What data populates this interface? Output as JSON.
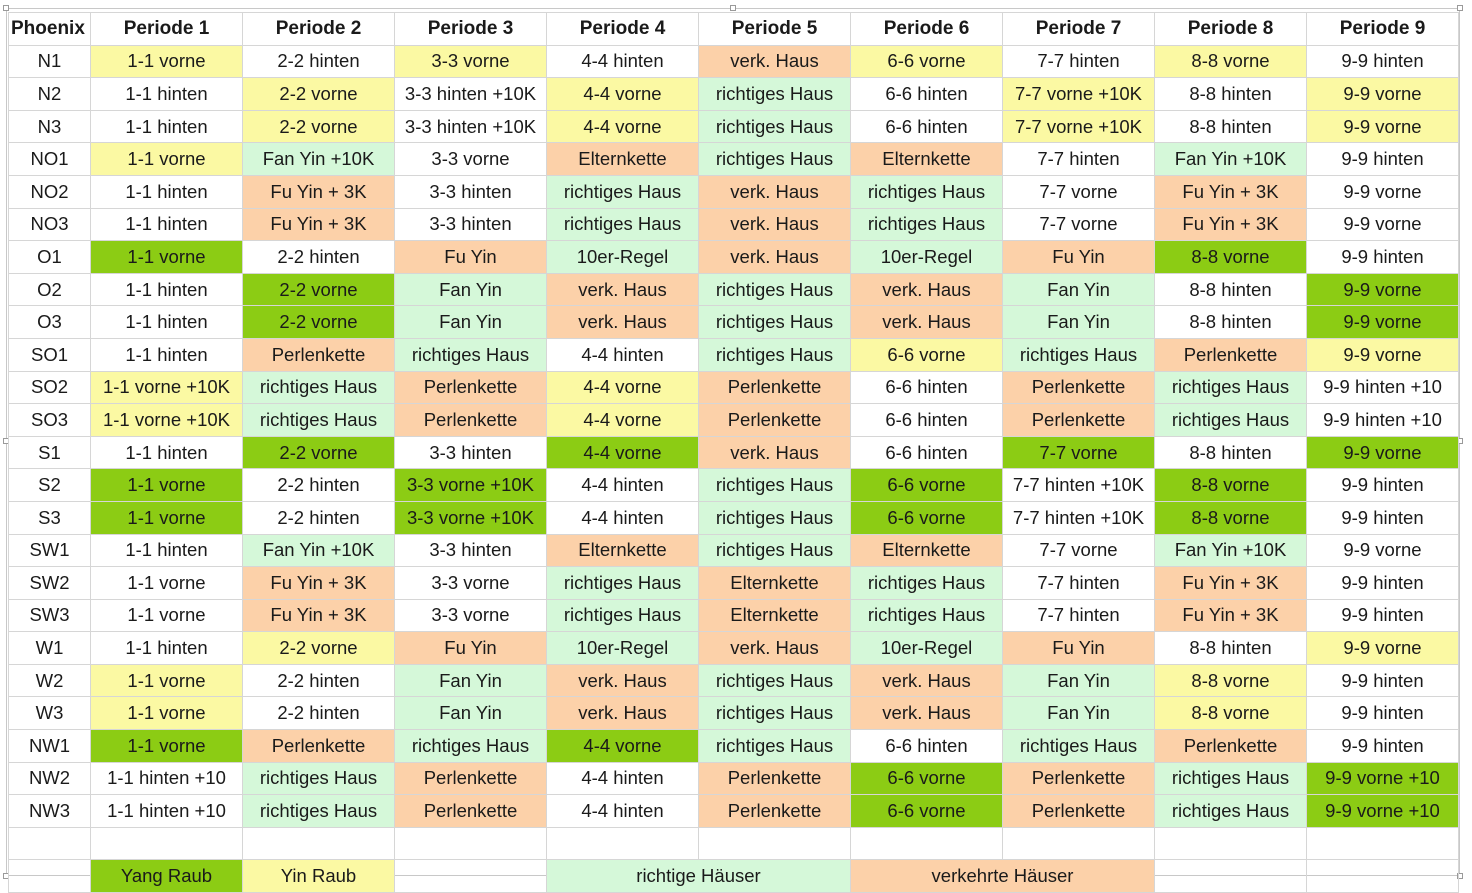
{
  "header": {
    "corner": "Phoenix",
    "periods": [
      "Periode 1",
      "Periode 2",
      "Periode 3",
      "Periode 4",
      "Periode 5",
      "Periode 6",
      "Periode 7",
      "Periode 8",
      "Periode 9"
    ]
  },
  "colors": {
    "yang": "#8ccc14",
    "yin": "#fbf9a3",
    "right": "#d5f8d9",
    "wrong": "#fcd1a9",
    "none": "#ffffff"
  },
  "rows": [
    {
      "label": "N1",
      "cells": [
        [
          "1-1 vorne",
          "yin"
        ],
        [
          "2-2 hinten",
          "none"
        ],
        [
          "3-3 vorne",
          "yin"
        ],
        [
          "4-4 hinten",
          "none"
        ],
        [
          "verk. Haus",
          "wrong"
        ],
        [
          "6-6 vorne",
          "yin"
        ],
        [
          "7-7 hinten",
          "none"
        ],
        [
          "8-8 vorne",
          "yin"
        ],
        [
          "9-9 hinten",
          "none"
        ]
      ]
    },
    {
      "label": "N2",
      "cells": [
        [
          "1-1 hinten",
          "none"
        ],
        [
          "2-2 vorne",
          "yin"
        ],
        [
          "3-3 hinten +10K",
          "none"
        ],
        [
          "4-4 vorne",
          "yin"
        ],
        [
          "richtiges Haus",
          "right"
        ],
        [
          "6-6 hinten",
          "none"
        ],
        [
          "7-7 vorne +10K",
          "yin"
        ],
        [
          "8-8 hinten",
          "none"
        ],
        [
          "9-9 vorne",
          "yin"
        ]
      ]
    },
    {
      "label": "N3",
      "cells": [
        [
          "1-1 hinten",
          "none"
        ],
        [
          "2-2 vorne",
          "yin"
        ],
        [
          "3-3 hinten +10K",
          "none"
        ],
        [
          "4-4 vorne",
          "yin"
        ],
        [
          "richtiges Haus",
          "right"
        ],
        [
          "6-6 hinten",
          "none"
        ],
        [
          "7-7 vorne +10K",
          "yin"
        ],
        [
          "8-8 hinten",
          "none"
        ],
        [
          "9-9 vorne",
          "yin"
        ]
      ]
    },
    {
      "label": "NO1",
      "cells": [
        [
          "1-1 vorne",
          "yin"
        ],
        [
          "Fan Yin +10K",
          "right"
        ],
        [
          "3-3 vorne",
          "none"
        ],
        [
          "Elternkette",
          "wrong"
        ],
        [
          "richtiges Haus",
          "right"
        ],
        [
          "Elternkette",
          "wrong"
        ],
        [
          "7-7 hinten",
          "none"
        ],
        [
          "Fan Yin +10K",
          "right"
        ],
        [
          "9-9 hinten",
          "none"
        ]
      ]
    },
    {
      "label": "NO2",
      "cells": [
        [
          "1-1 hinten",
          "none"
        ],
        [
          "Fu Yin + 3K",
          "wrong"
        ],
        [
          "3-3 hinten",
          "none"
        ],
        [
          "richtiges Haus",
          "right"
        ],
        [
          "verk. Haus",
          "wrong"
        ],
        [
          "richtiges Haus",
          "right"
        ],
        [
          "7-7 vorne",
          "none"
        ],
        [
          "Fu Yin + 3K",
          "wrong"
        ],
        [
          "9-9 vorne",
          "none"
        ]
      ]
    },
    {
      "label": "NO3",
      "cells": [
        [
          "1-1 hinten",
          "none"
        ],
        [
          "Fu Yin + 3K",
          "wrong"
        ],
        [
          "3-3 hinten",
          "none"
        ],
        [
          "richtiges Haus",
          "right"
        ],
        [
          "verk. Haus",
          "wrong"
        ],
        [
          "richtiges Haus",
          "right"
        ],
        [
          "7-7 vorne",
          "none"
        ],
        [
          "Fu Yin + 3K",
          "wrong"
        ],
        [
          "9-9 vorne",
          "none"
        ]
      ]
    },
    {
      "label": "O1",
      "cells": [
        [
          "1-1 vorne",
          "yang"
        ],
        [
          "2-2 hinten",
          "none"
        ],
        [
          "Fu Yin",
          "wrong"
        ],
        [
          "10er-Regel",
          "right"
        ],
        [
          "verk. Haus",
          "wrong"
        ],
        [
          "10er-Regel",
          "right"
        ],
        [
          "Fu Yin",
          "wrong"
        ],
        [
          "8-8 vorne",
          "yang"
        ],
        [
          "9-9 hinten",
          "none"
        ]
      ]
    },
    {
      "label": "O2",
      "cells": [
        [
          "1-1 hinten",
          "none"
        ],
        [
          "2-2 vorne",
          "yang"
        ],
        [
          "Fan Yin",
          "right"
        ],
        [
          "verk. Haus",
          "wrong"
        ],
        [
          "richtiges Haus",
          "right"
        ],
        [
          "verk. Haus",
          "wrong"
        ],
        [
          "Fan Yin",
          "right"
        ],
        [
          "8-8 hinten",
          "none"
        ],
        [
          "9-9 vorne",
          "yang"
        ]
      ]
    },
    {
      "label": "O3",
      "cells": [
        [
          "1-1 hinten",
          "none"
        ],
        [
          "2-2 vorne",
          "yang"
        ],
        [
          "Fan Yin",
          "right"
        ],
        [
          "verk. Haus",
          "wrong"
        ],
        [
          "richtiges Haus",
          "right"
        ],
        [
          "verk. Haus",
          "wrong"
        ],
        [
          "Fan Yin",
          "right"
        ],
        [
          "8-8 hinten",
          "none"
        ],
        [
          "9-9 vorne",
          "yang"
        ]
      ]
    },
    {
      "label": "SO1",
      "cells": [
        [
          "1-1 hinten",
          "none"
        ],
        [
          "Perlenkette",
          "wrong"
        ],
        [
          "richtiges Haus",
          "right"
        ],
        [
          "4-4 hinten",
          "none"
        ],
        [
          "richtiges Haus",
          "right"
        ],
        [
          "6-6 vorne",
          "yin"
        ],
        [
          "richtiges Haus",
          "right"
        ],
        [
          "Perlenkette",
          "wrong"
        ],
        [
          "9-9 vorne",
          "yin"
        ]
      ]
    },
    {
      "label": "SO2",
      "cells": [
        [
          "1-1 vorne +10K",
          "yin"
        ],
        [
          "richtiges Haus",
          "right"
        ],
        [
          "Perlenkette",
          "wrong"
        ],
        [
          "4-4 vorne",
          "yin"
        ],
        [
          "Perlenkette",
          "wrong"
        ],
        [
          "6-6 hinten",
          "none"
        ],
        [
          "Perlenkette",
          "wrong"
        ],
        [
          "richtiges Haus",
          "right"
        ],
        [
          "9-9 hinten +10",
          "none"
        ]
      ]
    },
    {
      "label": "SO3",
      "cells": [
        [
          "1-1 vorne +10K",
          "yin"
        ],
        [
          "richtiges Haus",
          "right"
        ],
        [
          "Perlenkette",
          "wrong"
        ],
        [
          "4-4 vorne",
          "yin"
        ],
        [
          "Perlenkette",
          "wrong"
        ],
        [
          "6-6 hinten",
          "none"
        ],
        [
          "Perlenkette",
          "wrong"
        ],
        [
          "richtiges Haus",
          "right"
        ],
        [
          "9-9 hinten +10",
          "none"
        ]
      ]
    },
    {
      "label": "S1",
      "cells": [
        [
          "1-1 hinten",
          "none"
        ],
        [
          "2-2 vorne",
          "yang"
        ],
        [
          "3-3 hinten",
          "none"
        ],
        [
          "4-4 vorne",
          "yang"
        ],
        [
          "verk. Haus",
          "wrong"
        ],
        [
          "6-6 hinten",
          "none"
        ],
        [
          "7-7 vorne",
          "yang"
        ],
        [
          "8-8 hinten",
          "none"
        ],
        [
          "9-9 vorne",
          "yang"
        ]
      ]
    },
    {
      "label": "S2",
      "cells": [
        [
          "1-1 vorne",
          "yang"
        ],
        [
          "2-2 hinten",
          "none"
        ],
        [
          "3-3 vorne +10K",
          "yang"
        ],
        [
          "4-4 hinten",
          "none"
        ],
        [
          "richtiges Haus",
          "right"
        ],
        [
          "6-6 vorne",
          "yang"
        ],
        [
          "7-7 hinten +10K",
          "none"
        ],
        [
          "8-8 vorne",
          "yang"
        ],
        [
          "9-9 hinten",
          "none"
        ]
      ]
    },
    {
      "label": "S3",
      "cells": [
        [
          "1-1 vorne",
          "yang"
        ],
        [
          "2-2 hinten",
          "none"
        ],
        [
          "3-3 vorne +10K",
          "yang"
        ],
        [
          "4-4 hinten",
          "none"
        ],
        [
          "richtiges Haus",
          "right"
        ],
        [
          "6-6 vorne",
          "yang"
        ],
        [
          "7-7 hinten +10K",
          "none"
        ],
        [
          "8-8 vorne",
          "yang"
        ],
        [
          "9-9 hinten",
          "none"
        ]
      ]
    },
    {
      "label": "SW1",
      "cells": [
        [
          "1-1 hinten",
          "none"
        ],
        [
          "Fan Yin +10K",
          "right"
        ],
        [
          "3-3 hinten",
          "none"
        ],
        [
          "Elternkette",
          "wrong"
        ],
        [
          "richtiges Haus",
          "right"
        ],
        [
          "Elternkette",
          "wrong"
        ],
        [
          "7-7 vorne",
          "none"
        ],
        [
          "Fan Yin +10K",
          "right"
        ],
        [
          "9-9 vorne",
          "none"
        ]
      ]
    },
    {
      "label": "SW2",
      "cells": [
        [
          "1-1 vorne",
          "none"
        ],
        [
          "Fu Yin + 3K",
          "wrong"
        ],
        [
          "3-3 vorne",
          "none"
        ],
        [
          "richtiges Haus",
          "right"
        ],
        [
          "Elternkette",
          "wrong"
        ],
        [
          "richtiges Haus",
          "right"
        ],
        [
          "7-7 hinten",
          "none"
        ],
        [
          "Fu Yin + 3K",
          "wrong"
        ],
        [
          "9-9 hinten",
          "none"
        ]
      ]
    },
    {
      "label": "SW3",
      "cells": [
        [
          "1-1 vorne",
          "none"
        ],
        [
          "Fu Yin + 3K",
          "wrong"
        ],
        [
          "3-3 vorne",
          "none"
        ],
        [
          "richtiges Haus",
          "right"
        ],
        [
          "Elternkette",
          "wrong"
        ],
        [
          "richtiges Haus",
          "right"
        ],
        [
          "7-7 hinten",
          "none"
        ],
        [
          "Fu Yin + 3K",
          "wrong"
        ],
        [
          "9-9 hinten",
          "none"
        ]
      ]
    },
    {
      "label": "W1",
      "cells": [
        [
          "1-1 hinten",
          "none"
        ],
        [
          "2-2 vorne",
          "yin"
        ],
        [
          "Fu Yin",
          "wrong"
        ],
        [
          "10er-Regel",
          "right"
        ],
        [
          "verk. Haus",
          "wrong"
        ],
        [
          "10er-Regel",
          "right"
        ],
        [
          "Fu Yin",
          "wrong"
        ],
        [
          "8-8 hinten",
          "none"
        ],
        [
          "9-9 vorne",
          "yin"
        ]
      ]
    },
    {
      "label": "W2",
      "cells": [
        [
          "1-1 vorne",
          "yin"
        ],
        [
          "2-2 hinten",
          "none"
        ],
        [
          "Fan Yin",
          "right"
        ],
        [
          "verk. Haus",
          "wrong"
        ],
        [
          "richtiges Haus",
          "right"
        ],
        [
          "verk. Haus",
          "wrong"
        ],
        [
          "Fan Yin",
          "right"
        ],
        [
          "8-8 vorne",
          "yin"
        ],
        [
          "9-9 hinten",
          "none"
        ]
      ]
    },
    {
      "label": "W3",
      "cells": [
        [
          "1-1 vorne",
          "yin"
        ],
        [
          "2-2 hinten",
          "none"
        ],
        [
          "Fan Yin",
          "right"
        ],
        [
          "verk. Haus",
          "wrong"
        ],
        [
          "richtiges Haus",
          "right"
        ],
        [
          "verk. Haus",
          "wrong"
        ],
        [
          "Fan Yin",
          "right"
        ],
        [
          "8-8 vorne",
          "yin"
        ],
        [
          "9-9 hinten",
          "none"
        ]
      ]
    },
    {
      "label": "NW1",
      "cells": [
        [
          "1-1 vorne",
          "yang"
        ],
        [
          "Perlenkette",
          "wrong"
        ],
        [
          "richtiges Haus",
          "right"
        ],
        [
          "4-4 vorne",
          "yang"
        ],
        [
          "richtiges Haus",
          "right"
        ],
        [
          "6-6 hinten",
          "none"
        ],
        [
          "richtiges Haus",
          "right"
        ],
        [
          "Perlenkette",
          "wrong"
        ],
        [
          "9-9 hinten",
          "none"
        ]
      ]
    },
    {
      "label": "NW2",
      "cells": [
        [
          "1-1 hinten +10",
          "none"
        ],
        [
          "richtiges Haus",
          "right"
        ],
        [
          "Perlenkette",
          "wrong"
        ],
        [
          "4-4 hinten",
          "none"
        ],
        [
          "Perlenkette",
          "wrong"
        ],
        [
          "6-6 vorne",
          "yang"
        ],
        [
          "Perlenkette",
          "wrong"
        ],
        [
          "richtiges Haus",
          "right"
        ],
        [
          "9-9 vorne +10",
          "yang"
        ]
      ]
    },
    {
      "label": "NW3",
      "cells": [
        [
          "1-1 hinten +10",
          "none"
        ],
        [
          "richtiges Haus",
          "right"
        ],
        [
          "Perlenkette",
          "wrong"
        ],
        [
          "4-4 hinten",
          "none"
        ],
        [
          "Perlenkette",
          "wrong"
        ],
        [
          "6-6 vorne",
          "yang"
        ],
        [
          "Perlenkette",
          "wrong"
        ],
        [
          "richtiges Haus",
          "right"
        ],
        [
          "9-9 vorne +10",
          "yang"
        ]
      ]
    }
  ],
  "legend": {
    "yang": "Yang Raub",
    "yin": "Yin Raub",
    "right": "richtige Häuser",
    "wrong": "verkehrte Häuser"
  }
}
